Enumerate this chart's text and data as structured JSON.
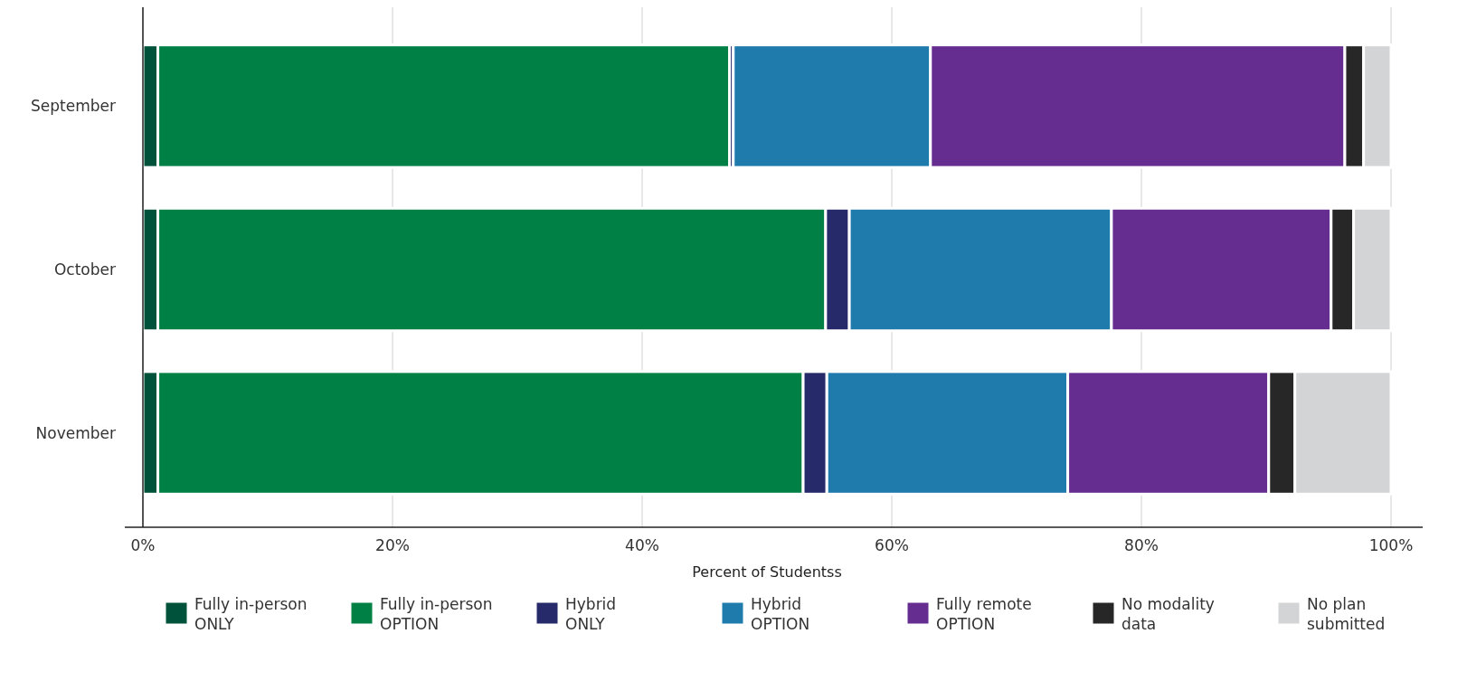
{
  "chart_data": {
    "type": "bar",
    "orientation": "horizontal",
    "stacked": true,
    "xlabel": "Percent of Studentss",
    "categories": [
      "September",
      "October",
      "November"
    ],
    "series": [
      {
        "name": "Fully in-person ONLY",
        "color": "#00533a",
        "values": [
          1.2,
          1.2,
          1.2
        ]
      },
      {
        "name": "Fully in-person OPTION",
        "color": "#008045",
        "values": [
          45.8,
          53.5,
          51.7
        ]
      },
      {
        "name": "Hybrid ONLY",
        "color": "#262a6b",
        "values": [
          0.3,
          1.9,
          1.9
        ]
      },
      {
        "name": "Hybrid OPTION",
        "color": "#207bad",
        "values": [
          15.8,
          21.0,
          19.3
        ]
      },
      {
        "name": "Fully remote OPTION",
        "color": "#652d8f",
        "values": [
          33.2,
          17.6,
          16.1
        ]
      },
      {
        "name": "No modality data",
        "color": "#272727",
        "values": [
          1.5,
          1.8,
          2.1
        ]
      },
      {
        "name": "No plan submitted",
        "color": "#d3d4d6",
        "values": [
          2.2,
          3.0,
          7.7
        ]
      }
    ],
    "xlim": [
      0,
      100
    ],
    "xticks": [
      {
        "value": 0,
        "label": "0%"
      },
      {
        "value": 20,
        "label": "20%"
      },
      {
        "value": 40,
        "label": "40%"
      },
      {
        "value": 60,
        "label": "60%"
      },
      {
        "value": 80,
        "label": "80%"
      },
      {
        "value": 100,
        "label": "100%"
      }
    ],
    "grid": "x",
    "legend": "bottom"
  }
}
